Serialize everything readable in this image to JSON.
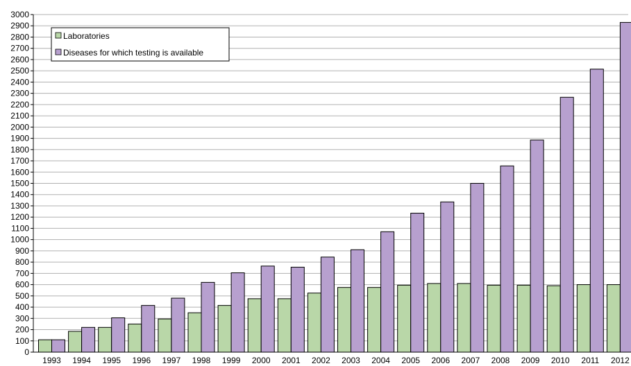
{
  "chart_data": {
    "type": "bar",
    "categories": [
      "1993",
      "1994",
      "1995",
      "1996",
      "1997",
      "1998",
      "1999",
      "2000",
      "2001",
      "2002",
      "2003",
      "2004",
      "2005",
      "2006",
      "2007",
      "2008",
      "2009",
      "2010",
      "2011",
      "2012"
    ],
    "series": [
      {
        "name": "Laboratories",
        "values": [
          110,
          185,
          220,
          250,
          295,
          350,
          415,
          475,
          475,
          525,
          575,
          575,
          595,
          610,
          610,
          595,
          595,
          590,
          600,
          600
        ],
        "color": "#b9d7a8"
      },
      {
        "name": "Diseases for which testing is available",
        "values": [
          110,
          220,
          305,
          415,
          480,
          620,
          705,
          765,
          755,
          845,
          910,
          1070,
          1235,
          1335,
          1500,
          1655,
          1885,
          2265,
          2515,
          2930
        ],
        "color": "#b7a0cf"
      }
    ],
    "title": "",
    "xlabel": "",
    "ylabel": "",
    "ylim": [
      0,
      3000
    ],
    "yticks": [
      0,
      100,
      200,
      300,
      400,
      500,
      600,
      700,
      800,
      900,
      1000,
      1100,
      1200,
      1300,
      1400,
      1500,
      1600,
      1700,
      1800,
      1900,
      2000,
      2100,
      2200,
      2300,
      2400,
      2500,
      2600,
      2700,
      2800,
      2900,
      3000
    ],
    "grid": true,
    "legend_position": "top-left"
  }
}
